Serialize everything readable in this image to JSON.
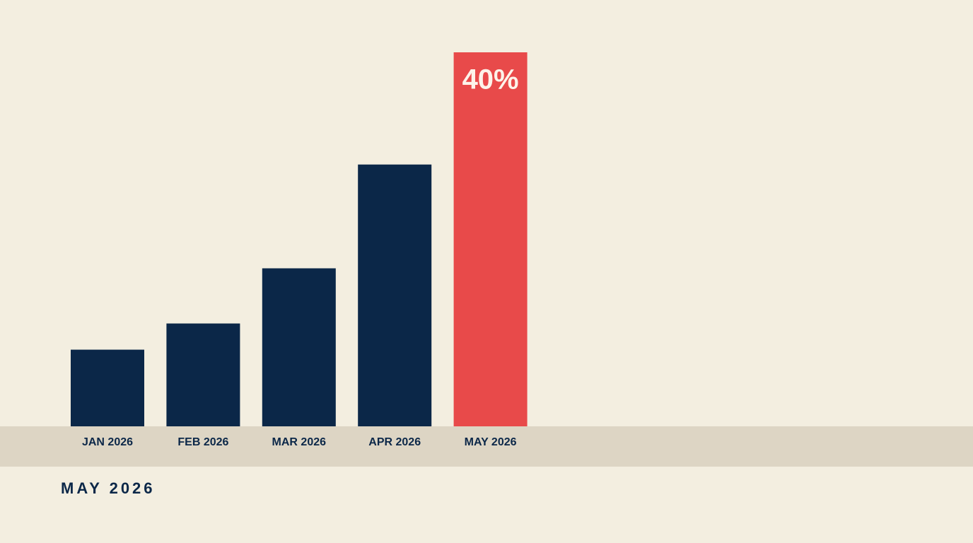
{
  "chart_data": {
    "type": "bar",
    "categories": [
      "JAN 2026",
      "FEB 2026",
      "MAR 2026",
      "APR 2026",
      "MAY 2026"
    ],
    "values": [
      8.2,
      11,
      16.9,
      28,
      40
    ],
    "value_labels": [
      null,
      null,
      null,
      null,
      "40%"
    ],
    "colors": [
      "#0b2748",
      "#0b2748",
      "#0b2748",
      "#0b2748",
      "#e84a4a"
    ],
    "ylim": [
      0,
      40
    ],
    "caption": "MAY 2026"
  }
}
